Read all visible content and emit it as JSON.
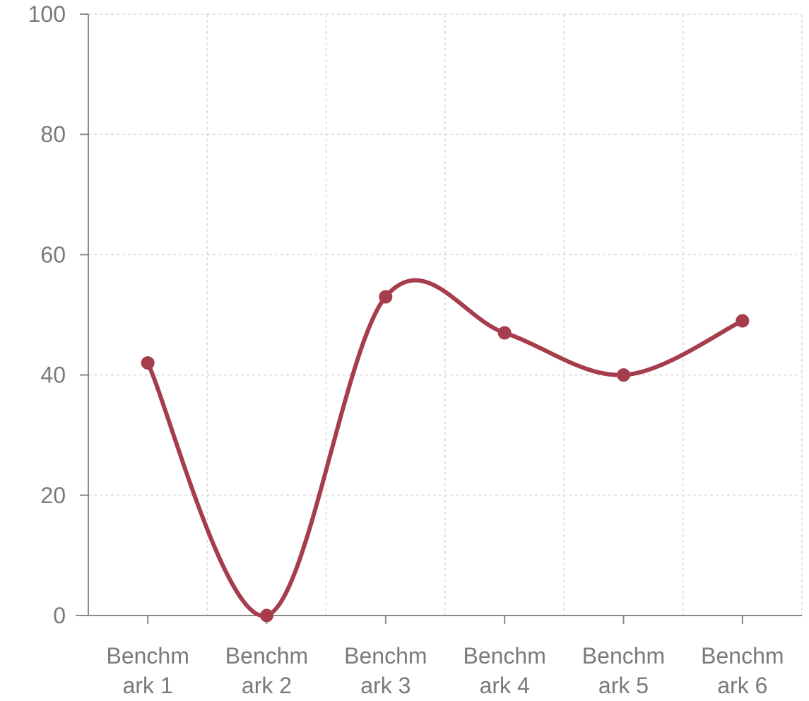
{
  "chart_data": {
    "type": "line",
    "categories": [
      [
        "Benchm",
        "ark 1"
      ],
      [
        "Benchm",
        "ark 2"
      ],
      [
        "Benchm",
        "ark 3"
      ],
      [
        "Benchm",
        "ark 4"
      ],
      [
        "Benchm",
        "ark 5"
      ],
      [
        "Benchm",
        "ark 6"
      ]
    ],
    "series": [
      {
        "values": [
          42,
          0,
          53,
          47,
          40,
          49
        ],
        "color": "#a63d4d"
      }
    ],
    "ylim": [
      0,
      100
    ],
    "yticks": [
      0,
      20,
      40,
      60,
      80,
      100
    ],
    "grid": true,
    "smooth": true,
    "title": "",
    "xlabel": "",
    "ylabel": ""
  }
}
